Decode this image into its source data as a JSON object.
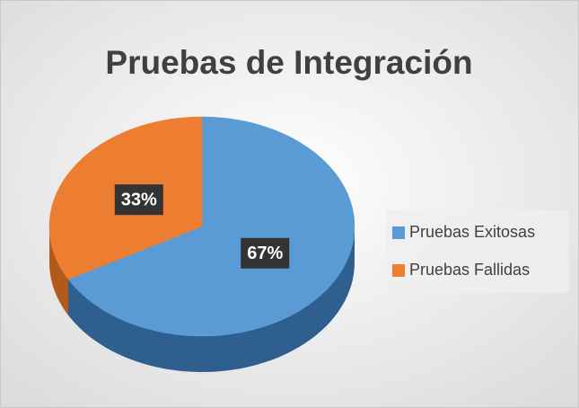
{
  "chart_data": {
    "type": "pie3d",
    "title": "Pruebas de Integración",
    "categories": [
      "Pruebas Exitosas",
      "Pruebas Fallidas"
    ],
    "values": [
      67,
      33
    ],
    "value_labels": [
      "67%",
      "33%"
    ],
    "colors": [
      "#5b9bd5",
      "#ed7d31"
    ],
    "side_colors": [
      "#2f5f8e",
      "#b05a1c"
    ],
    "legend": "right"
  }
}
